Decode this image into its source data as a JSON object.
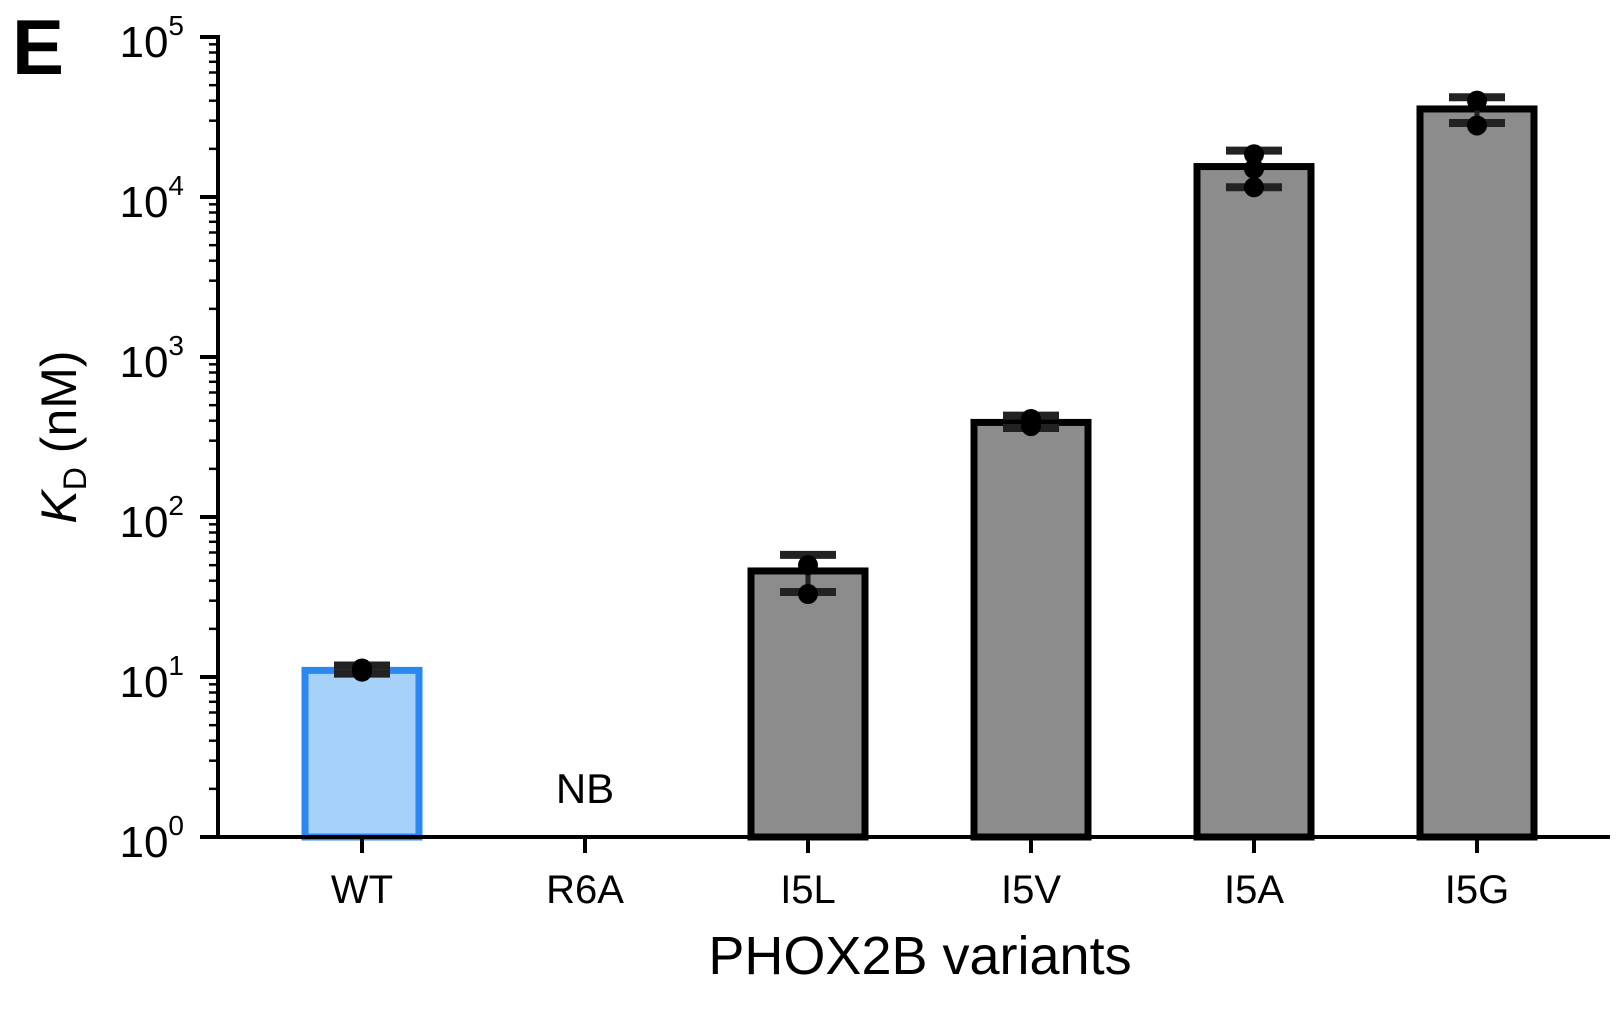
{
  "panel_label": "E",
  "chart_data": {
    "type": "bar",
    "scale": "log",
    "title": "",
    "xlabel": "PHOX2B variants",
    "ylabel_symbol": "K",
    "ylabel_subscript": "D",
    "ylabel_unit": " (nM)",
    "ylim": [
      1,
      100000
    ],
    "y_ticks": [
      {
        "base": "10",
        "exp": "0"
      },
      {
        "base": "10",
        "exp": "1"
      },
      {
        "base": "10",
        "exp": "2"
      },
      {
        "base": "10",
        "exp": "3"
      },
      {
        "base": "10",
        "exp": "4"
      },
      {
        "base": "10",
        "exp": "5"
      }
    ],
    "categories": [
      "WT",
      "R6A",
      "I5L",
      "I5V",
      "I5A",
      "I5G"
    ],
    "bars": [
      {
        "category": "WT",
        "value": 11,
        "err_low": 10.5,
        "err_high": 11.8,
        "points": [
          10.8,
          11.3
        ],
        "highlight": true
      },
      {
        "category": "R6A",
        "value": null,
        "label": "NB"
      },
      {
        "category": "I5L",
        "value": 46,
        "err_low": 34,
        "err_high": 58,
        "points": [
          33,
          50
        ]
      },
      {
        "category": "I5V",
        "value": 390,
        "err_low": 360,
        "err_high": 430,
        "points": [
          370,
          410
        ]
      },
      {
        "category": "I5A",
        "value": 15500,
        "err_low": 11500,
        "err_high": 19500,
        "points": [
          11500,
          15000,
          18500
        ]
      },
      {
        "category": "I5G",
        "value": 35500,
        "err_low": 29000,
        "err_high": 42000,
        "points": [
          28000,
          40000
        ]
      }
    ],
    "colors": {
      "highlight_fill": "#a6d1f9",
      "highlight_stroke": "#2a88f0",
      "bar_fill": "#8c8c8c",
      "bar_stroke": "#000000",
      "axis": "#000000"
    }
  }
}
